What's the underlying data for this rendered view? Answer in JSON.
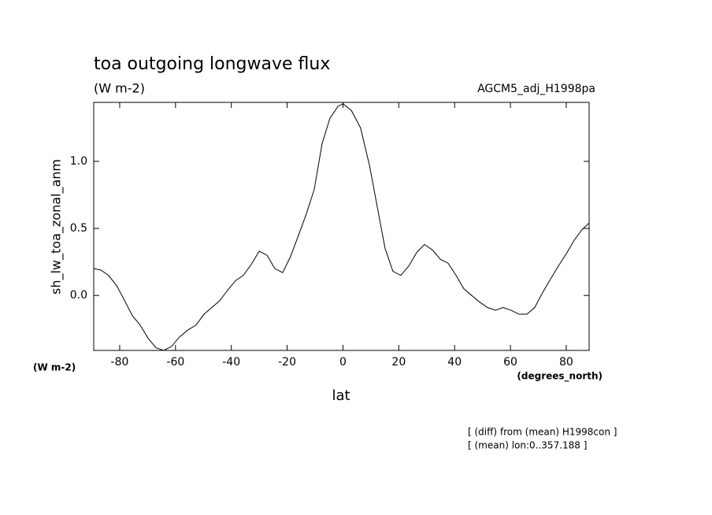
{
  "chart_data": {
    "type": "line",
    "title": "toa outgoing longwave flux",
    "subtitle": "(W m-2)",
    "experiment": "AGCM5_adj_H1998pa",
    "y_label": "sh_lw_toa_zonal_anm",
    "y_units": "(W m-2)",
    "x_units": "(degrees_north)",
    "x_label": "lat",
    "notes": [
      "[ (diff) from (mean) H1998con ]",
      "[ (mean) lon:0..357.188 ]"
    ],
    "x": [
      -89.3,
      -86.8,
      -84,
      -81,
      -78.3,
      -75.5,
      -72.7,
      -69.8,
      -67,
      -64.2,
      -61.4,
      -58.6,
      -55.7,
      -52.6,
      -49.8,
      -47,
      -44.2,
      -41.3,
      -38.5,
      -35.7,
      -32.9,
      -30,
      -27.2,
      -24.4,
      -21.6,
      -18.8,
      -15.9,
      -13.1,
      -10.3,
      -7.5,
      -4.7,
      -1.8,
      0,
      3,
      6.3,
      9.5,
      12.3,
      15.1,
      17.9,
      20.7,
      23.6,
      26.4,
      29.2,
      32,
      34.9,
      37.7,
      40.5,
      43.3,
      46.1,
      49,
      51.8,
      54.6,
      57.4,
      60.2,
      63.1,
      65.9,
      68.7,
      71.5,
      74.3,
      77.2,
      80,
      82.8,
      85.6,
      88.2
    ],
    "series": [
      {
        "color": "#000000",
        "values": [
          0.2,
          0.19,
          0.15,
          0.07,
          -0.035,
          -0.15,
          -0.22,
          -0.32,
          -0.39,
          -0.41,
          -0.38,
          -0.31,
          -0.26,
          -0.22,
          -0.14,
          -0.09,
          -0.04,
          0.04,
          0.11,
          0.15,
          0.23,
          0.33,
          0.3,
          0.2,
          0.17,
          0.29,
          0.45,
          0.61,
          0.79,
          1.13,
          1.32,
          1.41,
          1.43,
          1.38,
          1.25,
          0.97,
          0.66,
          0.35,
          0.18,
          0.15,
          0.22,
          0.32,
          0.38,
          0.34,
          0.27,
          0.24,
          0.15,
          0.05,
          0,
          -0.05,
          -0.09,
          -0.11,
          -0.09,
          -0.11,
          -0.14,
          -0.14,
          -0.09,
          0.02,
          0.12,
          0.22,
          0.31,
          0.41,
          0.49,
          0.54
        ]
      }
    ],
    "xlim": [
      -89.3,
      88.2
    ],
    "ylim": [
      -0.41,
      1.44
    ],
    "xticks": [
      -80,
      -60,
      -40,
      -20,
      0,
      20,
      40,
      60,
      80
    ],
    "yticks": [
      {
        "value": 0,
        "label": "0.0"
      },
      0.5,
      {
        "value": 1,
        "label": "1.0"
      }
    ]
  }
}
